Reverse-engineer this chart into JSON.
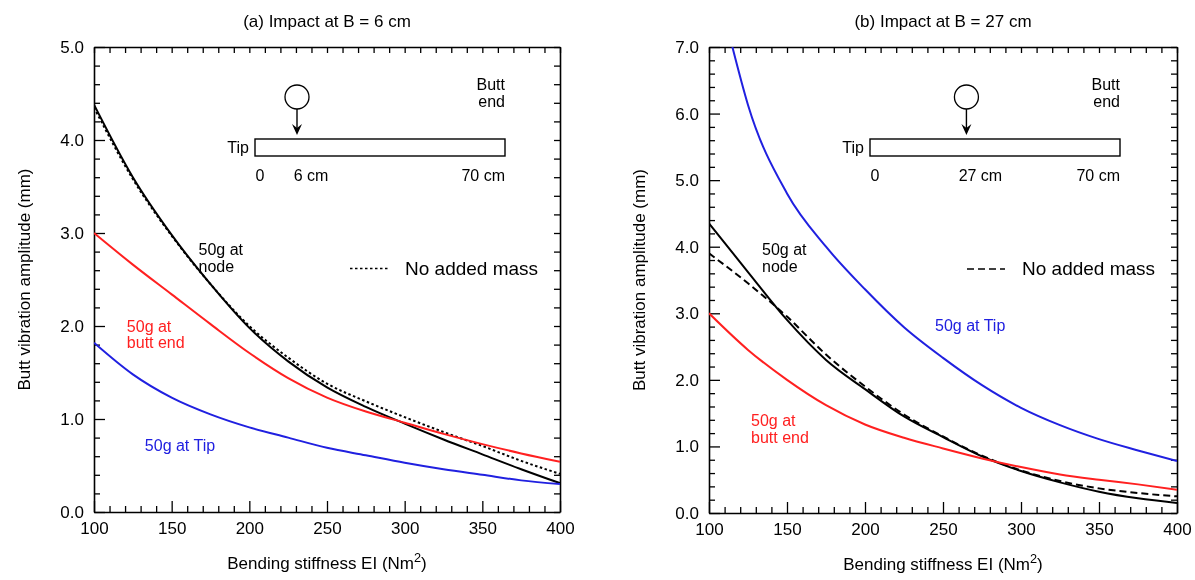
{
  "chart_data": [
    {
      "type": "line",
      "title": "(a) Impact at B = 6 cm",
      "xlabel": "Bending stiffness EI (Nm$^{2}$)",
      "ylabel": "Butt vibration amplitude (mm)",
      "x": [
        100,
        125,
        150,
        175,
        200,
        225,
        250,
        275,
        300,
        325,
        350,
        375,
        400
      ],
      "series": [
        {
          "name": "50g at\nnode",
          "color": "#000000",
          "values": [
            4.38,
            3.6,
            2.98,
            2.45,
            1.98,
            1.62,
            1.34,
            1.13,
            0.95,
            0.78,
            0.62,
            0.46,
            0.31
          ]
        },
        {
          "name": "No added mass",
          "color": "#000000",
          "line_style": "dotted",
          "values": [
            4.35,
            3.58,
            2.97,
            2.45,
            2.0,
            1.66,
            1.38,
            1.19,
            1.02,
            0.86,
            0.71,
            0.55,
            0.41
          ]
        },
        {
          "name": "50g at\nbutt end",
          "color": "#ff2020",
          "values": [
            3.0,
            2.66,
            2.34,
            2.02,
            1.71,
            1.44,
            1.23,
            1.08,
            0.96,
            0.84,
            0.73,
            0.63,
            0.54
          ]
        },
        {
          "name": "50g at Tip",
          "color": "#2020e0",
          "values": [
            1.82,
            1.48,
            1.23,
            1.05,
            0.91,
            0.8,
            0.69,
            0.61,
            0.53,
            0.46,
            0.4,
            0.34,
            0.3
          ]
        }
      ],
      "xlim": [
        100,
        400
      ],
      "ylim": [
        0,
        5
      ],
      "xticks": [
        100,
        {
          "value": 110,
          "label": null
        },
        {
          "value": 120,
          "label": null
        },
        {
          "value": 130,
          "label": null
        },
        {
          "value": 140,
          "label": null
        },
        150,
        {
          "value": 160,
          "label": null
        },
        {
          "value": 170,
          "label": null
        },
        {
          "value": 180,
          "label": null
        },
        {
          "value": 190,
          "label": null
        },
        200,
        {
          "value": 210,
          "label": null
        },
        {
          "value": 220,
          "label": null
        },
        {
          "value": 230,
          "label": null
        },
        {
          "value": 240,
          "label": null
        },
        250,
        {
          "value": 260,
          "label": null
        },
        {
          "value": 270,
          "label": null
        },
        {
          "value": 280,
          "label": null
        },
        {
          "value": 290,
          "label": null
        },
        300,
        {
          "value": 310,
          "label": null
        },
        {
          "value": 320,
          "label": null
        },
        {
          "value": 330,
          "label": null
        },
        {
          "value": 340,
          "label": null
        },
        350,
        {
          "value": 360,
          "label": null
        },
        {
          "value": 370,
          "label": null
        },
        {
          "value": 380,
          "label": null
        },
        {
          "value": 390,
          "label": null
        },
        400
      ],
      "yticks": [
        {
          "value": 0,
          "label": "0.0"
        },
        {
          "value": 0.2,
          "label": null
        },
        {
          "value": 0.4,
          "label": null
        },
        {
          "value": 0.6,
          "label": null
        },
        {
          "value": 0.8,
          "label": null
        },
        {
          "value": 1,
          "label": "1.0"
        },
        {
          "value": 1.2,
          "label": null
        },
        {
          "value": 1.4,
          "label": null
        },
        {
          "value": 1.6,
          "label": null
        },
        {
          "value": 1.8,
          "label": null
        },
        {
          "value": 2,
          "label": "2.0"
        },
        {
          "value": 2.2,
          "label": null
        },
        {
          "value": 2.4,
          "label": null
        },
        {
          "value": 2.6,
          "label": null
        },
        {
          "value": 2.8,
          "label": null
        },
        {
          "value": 3,
          "label": "3.0"
        },
        {
          "value": 3.2,
          "label": null
        },
        {
          "value": 3.4,
          "label": null
        },
        {
          "value": 3.6,
          "label": null
        },
        {
          "value": 3.8,
          "label": null
        },
        {
          "value": 4,
          "label": "4.0"
        },
        {
          "value": 4.2,
          "label": null
        },
        {
          "value": 4.4,
          "label": null
        },
        {
          "value": 4.6,
          "label": null
        },
        {
          "value": 4.8,
          "label": null
        },
        {
          "value": 5,
          "label": "5.0"
        }
      ],
      "grid": false,
      "legend": "right",
      "marker": "none",
      "annotations": [
        "Tip",
        "Butt\nend",
        "0",
        "6 cm",
        "70 cm"
      ]
    },
    {
      "type": "line",
      "title": "(b) Impact at B = 27 cm",
      "xlabel": "Bending stiffness EI (Nm$^{2}$)",
      "ylabel": "Butt vibration amplitude (mm)",
      "x": [
        100,
        125,
        150,
        175,
        200,
        225,
        250,
        275,
        300,
        325,
        350,
        375,
        400
      ],
      "series": [
        {
          "name": "50g at\nnode",
          "color": "#000000",
          "values": [
            4.35,
            3.62,
            2.9,
            2.3,
            1.86,
            1.45,
            1.14,
            0.85,
            0.63,
            0.46,
            0.32,
            0.22,
            0.15
          ]
        },
        {
          "name": "No added mass",
          "color": "#000000",
          "line_style": "dashed",
          "values": [
            3.9,
            3.45,
            2.95,
            2.38,
            1.9,
            1.48,
            1.15,
            0.86,
            0.64,
            0.48,
            0.37,
            0.3,
            0.25
          ]
        },
        {
          "name": "50g at\nbutt end",
          "color": "#ff2020",
          "values": [
            3.0,
            2.45,
            2.0,
            1.62,
            1.33,
            1.13,
            0.97,
            0.82,
            0.69,
            0.58,
            0.5,
            0.43,
            0.35
          ]
        },
        {
          "name": "50g at Tip",
          "color": "#2020e0",
          "x": [
            115,
            125,
            150,
            175,
            200,
            225,
            250,
            275,
            300,
            325,
            350,
            375,
            400
          ],
          "values": [
            7.0,
            6.13,
            4.8,
            4.0,
            3.36,
            2.79,
            2.33,
            1.92,
            1.58,
            1.32,
            1.11,
            0.94,
            0.78
          ]
        }
      ],
      "xlim": [
        100,
        400
      ],
      "ylim": [
        0,
        7
      ],
      "xticks": [
        100,
        {
          "value": 110,
          "label": null
        },
        {
          "value": 120,
          "label": null
        },
        {
          "value": 130,
          "label": null
        },
        {
          "value": 140,
          "label": null
        },
        150,
        {
          "value": 160,
          "label": null
        },
        {
          "value": 170,
          "label": null
        },
        {
          "value": 180,
          "label": null
        },
        {
          "value": 190,
          "label": null
        },
        200,
        {
          "value": 210,
          "label": null
        },
        {
          "value": 220,
          "label": null
        },
        {
          "value": 230,
          "label": null
        },
        {
          "value": 240,
          "label": null
        },
        250,
        {
          "value": 260,
          "label": null
        },
        {
          "value": 270,
          "label": null
        },
        {
          "value": 280,
          "label": null
        },
        {
          "value": 290,
          "label": null
        },
        300,
        {
          "value": 310,
          "label": null
        },
        {
          "value": 320,
          "label": null
        },
        {
          "value": 330,
          "label": null
        },
        {
          "value": 340,
          "label": null
        },
        350,
        {
          "value": 360,
          "label": null
        },
        {
          "value": 370,
          "label": null
        },
        {
          "value": 380,
          "label": null
        },
        {
          "value": 390,
          "label": null
        },
        400
      ],
      "yticks": [
        {
          "value": 0,
          "label": "0.0"
        },
        {
          "value": 0.2,
          "label": null
        },
        {
          "value": 0.4,
          "label": null
        },
        {
          "value": 0.6,
          "label": null
        },
        {
          "value": 0.8,
          "label": null
        },
        {
          "value": 1,
          "label": "1.0"
        },
        {
          "value": 1.2,
          "label": null
        },
        {
          "value": 1.4,
          "label": null
        },
        {
          "value": 1.6,
          "label": null
        },
        {
          "value": 1.8,
          "label": null
        },
        {
          "value": 2,
          "label": "2.0"
        },
        {
          "value": 2.2,
          "label": null
        },
        {
          "value": 2.4,
          "label": null
        },
        {
          "value": 2.6,
          "label": null
        },
        {
          "value": 2.8,
          "label": null
        },
        {
          "value": 3,
          "label": "3.0"
        },
        {
          "value": 3.2,
          "label": null
        },
        {
          "value": 3.4,
          "label": null
        },
        {
          "value": 3.6,
          "label": null
        },
        {
          "value": 3.8,
          "label": null
        },
        {
          "value": 4,
          "label": "4.0"
        },
        {
          "value": 4.2,
          "label": null
        },
        {
          "value": 4.4,
          "label": null
        },
        {
          "value": 4.6,
          "label": null
        },
        {
          "value": 4.8,
          "label": null
        },
        {
          "value": 5,
          "label": "5.0"
        },
        {
          "value": 5.2,
          "label": null
        },
        {
          "value": 5.4,
          "label": null
        },
        {
          "value": 5.6,
          "label": null
        },
        {
          "value": 5.8,
          "label": null
        },
        {
          "value": 6,
          "label": "6.0"
        },
        {
          "value": 6.2,
          "label": null
        },
        {
          "value": 6.4,
          "label": null
        },
        {
          "value": 6.6,
          "label": null
        },
        {
          "value": 6.8,
          "label": null
        },
        {
          "value": 7,
          "label": "7.0"
        }
      ],
      "grid": false,
      "legend": "right",
      "marker": "none",
      "annotations": [
        "Tip",
        "Butt\nend",
        "0",
        "27 cm",
        "70 cm"
      ]
    }
  ]
}
